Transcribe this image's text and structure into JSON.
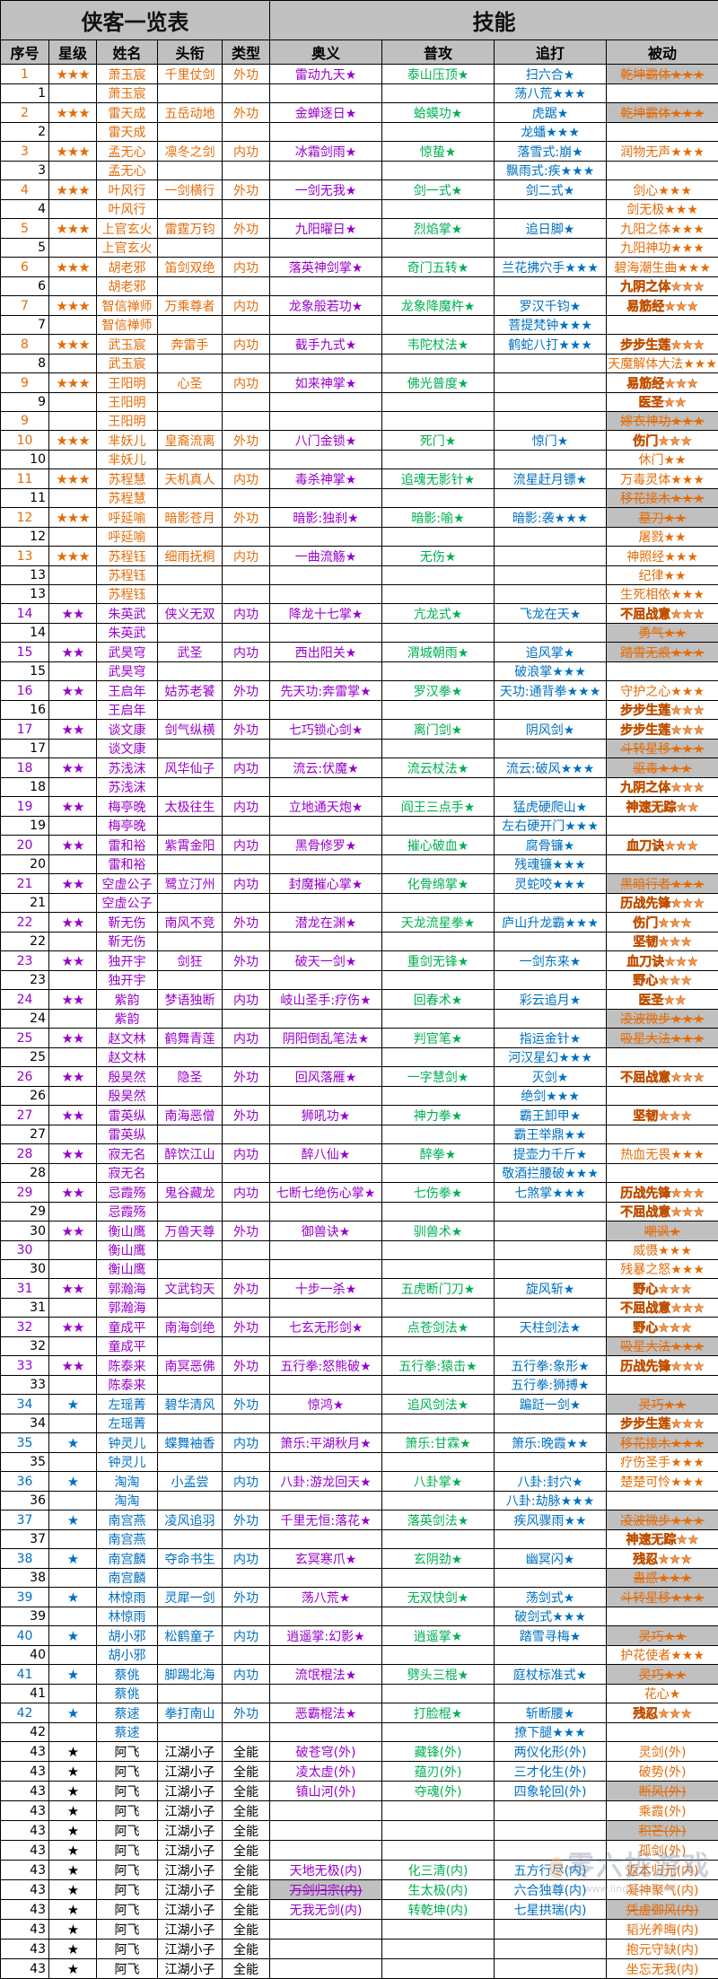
{
  "title": "侠客一览表",
  "skills_header": "技能",
  "columns": [
    "序号",
    "星级",
    "姓名",
    "头衔",
    "类型",
    "奥义",
    "普攻",
    "追打",
    "被动"
  ],
  "colors": {
    "orange": "#e36c09",
    "purple": "#9900cc",
    "blue": "#0070c0",
    "black": "#000000",
    "ultimate": "#9900cc",
    "basic": "#00b050",
    "combo": "#0070c0",
    "passive": "#e36c09",
    "header_bg": "#c0c0c0",
    "struck_bg": "#c0c0c0"
  },
  "rows": [
    {
      "no": "1",
      "tier": "orange",
      "stars": "★★★",
      "name": "萧玉宸",
      "title": "千里仗剑",
      "type": "外功",
      "ultimate": "雷动九天★",
      "basic": "泰山压顶★",
      "combo": "扫六合★",
      "passive": "乾坤霸体★★★",
      "passive_style": "struck"
    },
    {
      "no": "1",
      "tier": "orange",
      "name": "萧玉宸",
      "combo": "荡八荒★★★"
    },
    {
      "no": "2",
      "tier": "orange",
      "stars": "★★★",
      "name": "雷天成",
      "title": "五岳动地",
      "type": "外功",
      "ultimate": "金蝉逐日★",
      "basic": "蛤蟆功★",
      "combo": "虎踞★",
      "passive": "乾坤霸体★★★",
      "passive_style": "struck"
    },
    {
      "no": "2",
      "tier": "orange",
      "name": "雷天成",
      "combo": "龙蟠★★★"
    },
    {
      "no": "3",
      "tier": "orange",
      "stars": "★★★",
      "name": "孟无心",
      "title": "凛冬之剑",
      "type": "内功",
      "ultimate": "冰霜剑雨★",
      "basic": "惊蛰★",
      "combo": "落雪式:崩★",
      "passive": "润物无声★★★"
    },
    {
      "no": "3",
      "tier": "orange",
      "name": "孟无心",
      "combo": "飘雨式:疾★★★"
    },
    {
      "no": "4",
      "tier": "orange",
      "stars": "★★★",
      "name": "叶风行",
      "title": "一剑横行",
      "type": "外功",
      "ultimate": "一剑无我★",
      "basic": "剑一式★",
      "combo": "剑二式★",
      "passive": "剑心★★★"
    },
    {
      "no": "4",
      "tier": "orange",
      "name": "叶风行",
      "passive": "剑无极★★★"
    },
    {
      "no": "5",
      "tier": "orange",
      "stars": "★★★",
      "name": "上官玄火",
      "title": "雷霆万钧",
      "type": "外功",
      "ultimate": "九阳曜日★",
      "basic": "烈焰掌★",
      "combo": "追日脚★",
      "passive": "九阳之体★★★"
    },
    {
      "no": "5",
      "tier": "orange",
      "name": "上官玄火",
      "passive": "九阳神功★★★"
    },
    {
      "no": "6",
      "tier": "orange",
      "stars": "★★★",
      "name": "胡老邪",
      "title": "笛剑双绝",
      "type": "内功",
      "ultimate": "落英神剑掌★",
      "basic": "奇门五转★",
      "combo": "兰花拂穴手★★★",
      "passive": "碧海潮生曲★★★"
    },
    {
      "no": "6",
      "tier": "orange",
      "name": "胡老邪",
      "passive": "九阴之体★★★",
      "passive_style": "outlined"
    },
    {
      "no": "7",
      "tier": "orange",
      "stars": "★★★",
      "name": "智信禅师",
      "title": "万乘尊者",
      "type": "内功",
      "ultimate": "龙象般若功★",
      "basic": "龙象降魔杵★",
      "combo": "罗汉千钧★",
      "passive": "易筋经★★★",
      "passive_style": "outlined"
    },
    {
      "no": "7",
      "tier": "orange",
      "name": "智信禅师",
      "combo": "菩提梵钟★★★"
    },
    {
      "no": "8",
      "tier": "orange",
      "stars": "★★★",
      "name": "武玉宸",
      "title": "奔雷手",
      "type": "内功",
      "ultimate": "截手九式★",
      "basic": "韦陀杖法★",
      "combo": "鹤蛇八打★★★",
      "passive": "步步生莲★★★",
      "passive_style": "outlined"
    },
    {
      "no": "8",
      "tier": "orange",
      "name": "武玉宸",
      "passive": "天魔解体大法★★★"
    },
    {
      "no": "9",
      "tier": "orange",
      "stars": "★★★",
      "name": "王阳明",
      "title": "心圣",
      "type": "内功",
      "ultimate": "如来神掌★",
      "basic": "佛光普度★",
      "passive": "易筋经★★★",
      "passive_style": "outlined"
    },
    {
      "no": "9",
      "tier": "orange",
      "name": "王阳明",
      "passive": "医圣★★",
      "passive_style": "outlined"
    },
    {
      "no": "9",
      "tier": "orange",
      "num_colored": true,
      "name": "王阳明",
      "passive": "嫁衣神功★★★",
      "passive_style": "struck"
    },
    {
      "no": "10",
      "tier": "orange",
      "stars": "★★★",
      "name": "芈妖儿",
      "title": "皇裔流离",
      "type": "外功",
      "ultimate": "八门金锁★",
      "basic": "死门★",
      "combo": "惊门★",
      "passive": "伤门★★★",
      "passive_style": "outlined"
    },
    {
      "no": "10",
      "tier": "orange",
      "name": "芈妖儿",
      "passive": "休门★★"
    },
    {
      "no": "11",
      "tier": "orange",
      "stars": "★★★",
      "name": "苏程慧",
      "title": "天机真人",
      "type": "内功",
      "ultimate": "毒杀神掌★",
      "basic": "追魂无影针★",
      "combo": "流星赶月镖★",
      "passive": "万毒灵体★★★"
    },
    {
      "no": "11",
      "tier": "orange",
      "name": "苏程慧",
      "passive": "移花接木★★★",
      "passive_style": "struck"
    },
    {
      "no": "12",
      "tier": "orange",
      "stars": "★★★",
      "name": "呼延喻",
      "title": "暗影苍月",
      "type": "外功",
      "ultimate": "暗影:独刹★",
      "basic": "暗影:喻★",
      "combo": "暗影:袭★★★",
      "passive": "墓刀★★",
      "passive_style": "struck"
    },
    {
      "no": "12",
      "tier": "orange",
      "name": "呼延喻",
      "passive": "屠戮★★"
    },
    {
      "no": "13",
      "tier": "orange",
      "stars": "★★★",
      "name": "苏程钰",
      "title": "细雨抚桐",
      "type": "内功",
      "ultimate": "一曲流觞★",
      "basic": "无伤★",
      "passive": "神照经★★★"
    },
    {
      "no": "13",
      "tier": "orange",
      "name": "苏程钰",
      "passive": "纪律★★"
    },
    {
      "no": "13",
      "tier": "orange",
      "name": "苏程钰",
      "passive": "生死相依★★★"
    },
    {
      "no": "14",
      "tier": "purple",
      "stars": "★★",
      "name": "朱英武",
      "title": "侠义无双",
      "type": "内功",
      "ultimate": "降龙十七掌★",
      "basic": "亢龙式★",
      "combo": "飞龙在天★",
      "passive": "不屈战意★★★",
      "passive_style": "outlined"
    },
    {
      "no": "14",
      "tier": "purple",
      "name": "朱英武",
      "passive": "勇气★★",
      "passive_style": "struck"
    },
    {
      "no": "15",
      "tier": "purple",
      "stars": "★★",
      "name": "武昊穹",
      "title": "武圣",
      "type": "内功",
      "ultimate": "西出阳关★",
      "basic": "渭城朝雨★",
      "combo": "追风掌★",
      "passive": "踏雪无痕★★★",
      "passive_style": "struck"
    },
    {
      "no": "15",
      "tier": "purple",
      "name": "武昊穹",
      "combo": "破浪掌★★★"
    },
    {
      "no": "16",
      "tier": "purple",
      "stars": "★★",
      "name": "王启年",
      "title": "姑苏老饕",
      "type": "外功",
      "ultimate": "先天功:奔雷掌★",
      "basic": "罗汉拳★",
      "combo": "天功:通背拳★★★",
      "passive": "守护之心★★★"
    },
    {
      "no": "16",
      "tier": "purple",
      "name": "王启年",
      "passive": "步步生莲★★★",
      "passive_style": "outlined"
    },
    {
      "no": "17",
      "tier": "purple",
      "stars": "★★",
      "name": "谈文康",
      "title": "剑气纵横",
      "type": "外功",
      "ultimate": "七巧锁心剑★",
      "basic": "离门剑★",
      "combo": "阴风剑★",
      "passive": "步步生莲★★★",
      "passive_style": "outlined"
    },
    {
      "no": "17",
      "tier": "purple",
      "name": "谈文康",
      "passive": "斗转星移★★★",
      "passive_style": "struck"
    },
    {
      "no": "18",
      "tier": "purple",
      "stars": "★★",
      "name": "苏浅沫",
      "title": "风华仙子",
      "type": "内功",
      "ultimate": "流云:伏魔★",
      "basic": "流云杖法★",
      "combo": "流云:破风★★★",
      "passive": "驱毒★★★",
      "passive_style": "struck"
    },
    {
      "no": "18",
      "tier": "purple",
      "name": "苏浅沫",
      "passive": "九阴之体★★★",
      "passive_style": "outlined"
    },
    {
      "no": "19",
      "tier": "purple",
      "stars": "★★",
      "name": "梅亭晚",
      "title": "太极往生",
      "type": "内功",
      "ultimate": "立地通天炮★",
      "basic": "阎王三点手★",
      "combo": "猛虎硬爬山★",
      "passive": "神速无踪★★",
      "passive_style": "outlined"
    },
    {
      "no": "19",
      "tier": "purple",
      "name": "梅亭晚",
      "combo": "左右硬开门★★★"
    },
    {
      "no": "20",
      "tier": "purple",
      "stars": "★★",
      "name": "雷和裕",
      "title": "紫霄金阳",
      "type": "内功",
      "ultimate": "黑骨修罗★",
      "basic": "摧心破血★",
      "combo": "腐骨镰★",
      "passive": "血刀诀★★★",
      "passive_style": "outlined"
    },
    {
      "no": "20",
      "tier": "purple",
      "name": "雷和裕",
      "combo": "残魂镰★★★"
    },
    {
      "no": "21",
      "tier": "purple",
      "stars": "★★",
      "name": "空虚公子",
      "title": "鹭立汀州",
      "type": "内功",
      "ultimate": "封魔摧心掌★",
      "basic": "化骨绵掌★",
      "combo": "灵蛇咬★★★",
      "passive": "黑暗行者★★★",
      "passive_style": "struck"
    },
    {
      "no": "21",
      "tier": "purple",
      "name": "空虚公子",
      "passive": "历战先锋★★★",
      "passive_style": "outlined"
    },
    {
      "no": "22",
      "tier": "purple",
      "stars": "★★",
      "name": "靳无伤",
      "title": "南风不竞",
      "type": "外功",
      "ultimate": "潜龙在渊★",
      "basic": "天龙流星拳★",
      "combo": "庐山升龙霸★★★",
      "passive": "伤门★★★",
      "passive_style": "outlined"
    },
    {
      "no": "22",
      "tier": "purple",
      "name": "靳无伤",
      "passive": "坚韧★★★",
      "passive_style": "outlined"
    },
    {
      "no": "23",
      "tier": "purple",
      "stars": "★★",
      "name": "独开宇",
      "title": "剑狂",
      "type": "外功",
      "ultimate": "破天一剑★",
      "basic": "重剑无锋★",
      "combo": "一剑东来★",
      "passive": "血刀诀★★★",
      "passive_style": "outlined"
    },
    {
      "no": "23",
      "tier": "purple",
      "name": "独开宇",
      "passive": "野心★★★",
      "passive_style": "outlined"
    },
    {
      "no": "24",
      "tier": "purple",
      "stars": "★★",
      "name": "紫韵",
      "title": "梦语独断",
      "type": "内功",
      "ultimate": "岐山圣手:疗伤★",
      "basic": "回春术★",
      "combo": "彩云追月★",
      "passive": "医圣★★",
      "passive_style": "outlined"
    },
    {
      "no": "24",
      "tier": "purple",
      "name": "紫韵",
      "passive": "凌波微步★★★",
      "passive_style": "struck"
    },
    {
      "no": "25",
      "tier": "purple",
      "stars": "★★",
      "name": "赵文林",
      "title": "鹤舞青莲",
      "type": "内功",
      "ultimate": "阴阳倒乱笔法★",
      "basic": "判官笔★",
      "combo": "指运金针★",
      "passive": "吸星大法★★★",
      "passive_style": "struck"
    },
    {
      "no": "25",
      "tier": "purple",
      "name": "赵文林",
      "combo": "河汉星幻★★★"
    },
    {
      "no": "26",
      "tier": "purple",
      "stars": "★★",
      "name": "殷昊然",
      "title": "隐圣",
      "type": "外功",
      "ultimate": "回风落雁★",
      "basic": "一字慧剑★",
      "combo": "灭剑★",
      "passive": "不屈战意★★★",
      "passive_style": "outlined"
    },
    {
      "no": "26",
      "tier": "purple",
      "name": "殷昊然",
      "combo": "绝剑★★★"
    },
    {
      "no": "27",
      "tier": "purple",
      "stars": "★★",
      "name": "雷英纵",
      "title": "南海恶僧",
      "type": "外功",
      "ultimate": "狮吼功★",
      "basic": "神力拳★",
      "combo": "霸王卸甲★",
      "passive": "坚韧★★★",
      "passive_style": "outlined"
    },
    {
      "no": "27",
      "tier": "purple",
      "name": "雷英纵",
      "combo": "霸王举鼎★★"
    },
    {
      "no": "28",
      "tier": "purple",
      "stars": "★★",
      "name": "寂无名",
      "title": "醉饮江山",
      "type": "内功",
      "ultimate": "醉八仙★",
      "basic": "醉拳★",
      "combo": "提壶力千斤★",
      "passive": "热血无畏★★★"
    },
    {
      "no": "28",
      "tier": "purple",
      "name": "寂无名",
      "combo": "敬酒拦腰破★★★"
    },
    {
      "no": "29",
      "tier": "purple",
      "stars": "★★",
      "name": "忌霞殇",
      "title": "鬼谷藏龙",
      "type": "内功",
      "ultimate": "七断七绝伤心掌★",
      "basic": "七伤拳★",
      "combo": "七煞掌★★★",
      "passive": "历战先锋★★★",
      "passive_style": "outlined"
    },
    {
      "no": "29",
      "tier": "purple",
      "name": "忌霞殇",
      "passive": "不屈战意★★★",
      "passive_style": "outlined"
    },
    {
      "no": "30",
      "tier": "purple",
      "num_colored": false,
      "stars": "★★",
      "name": "衡山鹰",
      "title": "万兽天尊",
      "type": "外功",
      "ultimate": "御兽诀★",
      "basic": "驯兽术★",
      "passive": "嘲讽★",
      "passive_style": "struck"
    },
    {
      "no": "30",
      "tier": "purple",
      "num_colored": true,
      "name": "衡山鹰",
      "passive": "威慑★★★"
    },
    {
      "no": "30",
      "tier": "purple",
      "name": "衡山鹰",
      "passive": "残暴之怒★★★"
    },
    {
      "no": "31",
      "tier": "purple",
      "stars": "★★",
      "name": "郭瀚海",
      "title": "文武钧天",
      "type": "外功",
      "ultimate": "十步一杀★",
      "basic": "五虎断门刀★",
      "combo": "旋风斩★",
      "passive": "野心★★★",
      "passive_style": "outlined"
    },
    {
      "no": "31",
      "tier": "purple",
      "name": "郭瀚海",
      "passive": "不屈战意★★★",
      "passive_style": "outlined"
    },
    {
      "no": "32",
      "tier": "purple",
      "stars": "★★",
      "name": "童成平",
      "title": "南海剑绝",
      "type": "外功",
      "ultimate": "七玄无形剑★",
      "basic": "点苍剑法★",
      "combo": "天柱剑法★",
      "passive": "野心★★★",
      "passive_style": "outlined"
    },
    {
      "no": "32",
      "tier": "purple",
      "name": "童成平",
      "passive": "吸星大法★★★",
      "passive_style": "struck"
    },
    {
      "no": "33",
      "tier": "purple",
      "stars": "★★",
      "name": "陈泰来",
      "title": "南冥恶佛",
      "type": "外功",
      "ultimate": "五行拳:怒熊破★",
      "basic": "五行拳:猿击★",
      "combo": "五行拳:象形★",
      "passive": "历战先锋★★★",
      "passive_style": "outlined"
    },
    {
      "no": "33",
      "tier": "purple",
      "name": "陈泰来",
      "combo": "五行拳:狮搏★"
    },
    {
      "no": "34",
      "tier": "blue",
      "stars": "★",
      "name": "左瑶菁",
      "title": "碧华清风",
      "type": "外功",
      "ultimate": "惊鸿★",
      "basic": "追风剑法★",
      "combo": "蹁跹一剑★",
      "passive": "灵巧★★",
      "passive_style": "struck"
    },
    {
      "no": "34",
      "tier": "blue",
      "name": "左瑶菁",
      "passive": "步步生莲★★★",
      "passive_style": "outlined"
    },
    {
      "no": "35",
      "tier": "blue",
      "stars": "★",
      "name": "钟灵儿",
      "title": "蝶舞袖香",
      "type": "内功",
      "ultimate": "箫乐:平湖秋月★",
      "basic": "箫乐:甘霖★",
      "combo": "箫乐:晚霞★★",
      "passive": "移花接木★★★",
      "passive_style": "struck"
    },
    {
      "no": "35",
      "tier": "blue",
      "name": "钟灵儿",
      "passive": "疗伤圣手★★★"
    },
    {
      "no": "36",
      "tier": "blue",
      "stars": "★",
      "name": "淘淘",
      "title": "小孟尝",
      "type": "内功",
      "ultimate": "八卦:游龙回天★",
      "basic": "八卦掌★",
      "combo": "八卦:封穴★",
      "passive": "楚楚可怜★★★"
    },
    {
      "no": "36",
      "tier": "blue",
      "name": "淘淘",
      "combo": "八卦:劫脉★★★"
    },
    {
      "no": "37",
      "tier": "blue",
      "stars": "★",
      "name": "南宫燕",
      "title": "凌风追羽",
      "type": "外功",
      "ultimate": "千里无恒:落花★",
      "basic": "落英剑法★",
      "combo": "疾风骤雨★★",
      "passive": "凌波微步★★★",
      "passive_style": "struck"
    },
    {
      "no": "37",
      "tier": "blue",
      "name": "南宫燕",
      "passive": "神速无踪★★",
      "passive_style": "outlined"
    },
    {
      "no": "38",
      "tier": "blue",
      "stars": "★",
      "name": "南宫麟",
      "title": "夺命书生",
      "type": "内功",
      "ultimate": "玄冥寒爪★",
      "basic": "玄阴劲★",
      "combo": "幽冥闪★",
      "passive": "残忍★★★",
      "passive_style": "outlined"
    },
    {
      "no": "38",
      "tier": "blue",
      "name": "南宫麟",
      "passive": "蛊惑★★★",
      "passive_style": "struck"
    },
    {
      "no": "39",
      "tier": "blue",
      "stars": "★",
      "name": "林惊雨",
      "title": "灵犀一剑",
      "type": "外功",
      "ultimate": "荡八荒★",
      "basic": "无双快剑★",
      "combo": "荡剑式★",
      "passive": "斗转星移★★★",
      "passive_style": "struck"
    },
    {
      "no": "39",
      "tier": "blue",
      "name": "林惊雨",
      "combo": "破剑式★★★"
    },
    {
      "no": "40",
      "tier": "blue",
      "stars": "★",
      "name": "胡小邪",
      "title": "松鹤童子",
      "type": "内功",
      "ultimate": "逍遥掌:幻影★",
      "basic": "逍遥掌★",
      "combo": "踏雪寻梅★",
      "passive": "灵巧★★",
      "passive_style": "struck"
    },
    {
      "no": "40",
      "tier": "blue",
      "name": "胡小邪",
      "passive": "护花使者★★★"
    },
    {
      "no": "41",
      "tier": "blue",
      "stars": "★",
      "name": "蔡佻",
      "title": "脚踢北海",
      "type": "内功",
      "ultimate": "流氓棍法★",
      "basic": "劈头三棍★",
      "combo": "庭杖标准式★",
      "passive": "灵巧★★",
      "passive_style": "struck"
    },
    {
      "no": "41",
      "tier": "blue",
      "name": "蔡佻",
      "passive": "花心★"
    },
    {
      "no": "42",
      "tier": "blue",
      "stars": "★",
      "name": "蔡逑",
      "title": "拳打南山",
      "type": "外功",
      "ultimate": "恶霸棍法★",
      "basic": "打脸棍★",
      "combo": "斩断腰★",
      "passive": "残忍★★★",
      "passive_style": "outlined"
    },
    {
      "no": "42",
      "tier": "blue",
      "name": "蔡逑",
      "combo": "撩下腿★★★"
    },
    {
      "no": "43",
      "tier": "black",
      "num_colored": false,
      "stars": "★",
      "name": "阿飞",
      "title": "江湖小子",
      "type": "全能",
      "ultimate": "破苍穹(外)",
      "basic": "藏锋(外)",
      "combo": "两仪化形(外)",
      "passive": "灵剑(外)"
    },
    {
      "no": "43",
      "tier": "black",
      "num_colored": false,
      "stars": "★",
      "name": "阿飞",
      "title": "江湖小子",
      "type": "全能",
      "ultimate": "凌太虚(外)",
      "basic": "蕴刃(外)",
      "combo": "三才化生(外)",
      "passive": "破势(外)"
    },
    {
      "no": "43",
      "tier": "black",
      "num_colored": false,
      "stars": "★",
      "name": "阿飞",
      "title": "江湖小子",
      "type": "全能",
      "ultimate": "镇山河(外)",
      "basic": "夺魂(外)",
      "combo": "四象轮回(外)",
      "passive": "断风(外)",
      "passive_style": "struck"
    },
    {
      "no": "43",
      "tier": "black",
      "num_colored": false,
      "stars": "★",
      "name": "阿飞",
      "title": "江湖小子",
      "type": "全能",
      "passive": "乘霞(外)"
    },
    {
      "no": "43",
      "tier": "black",
      "num_colored": false,
      "stars": "★",
      "name": "阿飞",
      "title": "江湖小子",
      "type": "全能",
      "passive": "积芒(外)",
      "passive_style": "struck"
    },
    {
      "no": "43",
      "tier": "black",
      "num_colored": false,
      "stars": "★",
      "name": "阿飞",
      "title": "江湖小子",
      "type": "全能",
      "passive": "孤剑(外)"
    },
    {
      "no": "43",
      "tier": "black",
      "num_colored": false,
      "stars": "★",
      "name": "阿飞",
      "title": "江湖小子",
      "type": "全能",
      "ultimate": "天地无极(内)",
      "basic": "化三清(内)",
      "combo": "五方行尽(内)",
      "passive": "返本归元(内)"
    },
    {
      "no": "43",
      "tier": "black",
      "num_colored": false,
      "stars": "★",
      "name": "阿飞",
      "title": "江湖小子",
      "type": "全能",
      "ultimate": "万剑归宗(内)",
      "ultimate_style": "struck",
      "basic": "生太极(内)",
      "combo": "六合独尊(内)",
      "passive": "凝神聚气(内)"
    },
    {
      "no": "43",
      "tier": "black",
      "num_colored": false,
      "stars": "★",
      "name": "阿飞",
      "title": "江湖小子",
      "type": "全能",
      "ultimate": "无我无剑(内)",
      "basic": "转乾坤(内)",
      "combo": "七星拱瑞(内)",
      "passive": "凭虚御风(内)",
      "passive_style": "struck"
    },
    {
      "no": "43",
      "tier": "black",
      "num_colored": false,
      "stars": "★",
      "name": "阿飞",
      "title": "江湖小子",
      "type": "全能",
      "passive": "韬光养晦(内)"
    },
    {
      "no": "43",
      "tier": "black",
      "num_colored": false,
      "stars": "★",
      "name": "阿飞",
      "title": "江湖小子",
      "type": "全能",
      "passive": "抱元守缺(内)"
    },
    {
      "no": "43",
      "tier": "black",
      "num_colored": false,
      "stars": "★",
      "name": "阿飞",
      "title": "江湖小子",
      "type": "全能",
      "passive": "坐忘无我(内)"
    }
  ],
  "watermark": {
    "logo": "零六拢游戏",
    "url": "www.lingliuyx.com"
  }
}
